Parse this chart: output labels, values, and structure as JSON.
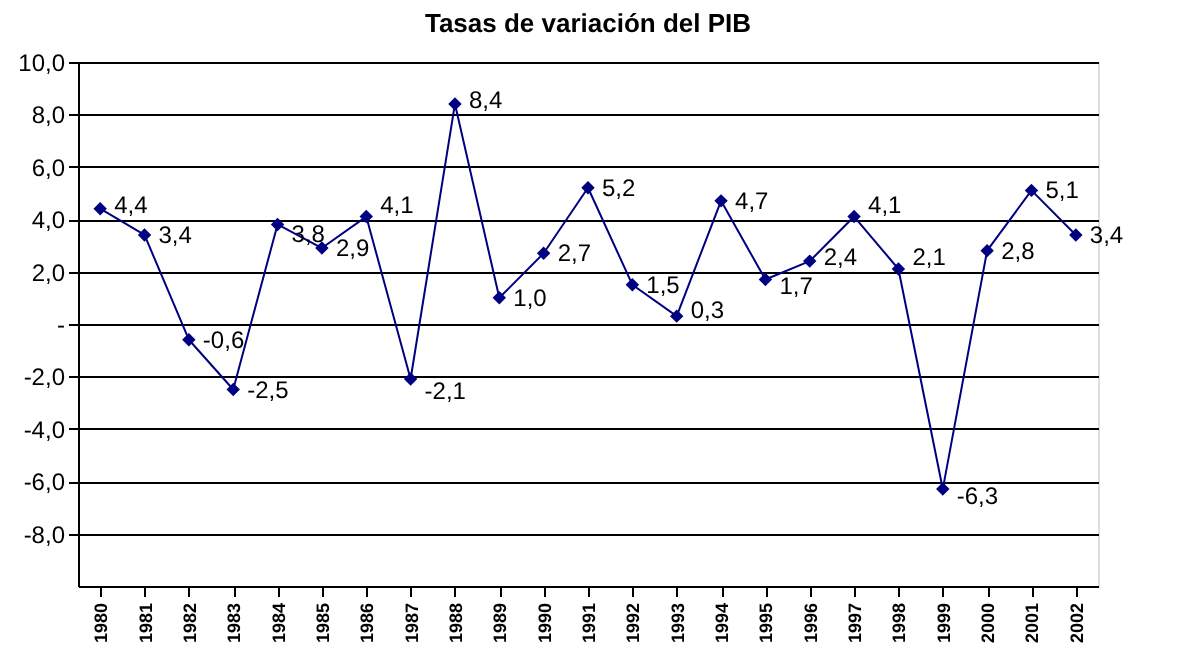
{
  "chart_data": {
    "type": "line",
    "title": "Tasas de variación del PIB",
    "categories": [
      "1980",
      "1981",
      "1982",
      "1983",
      "1984",
      "1985",
      "1986",
      "1987",
      "1988",
      "1989",
      "1990",
      "1991",
      "1992",
      "1993",
      "1994",
      "1995",
      "1996",
      "1997",
      "1998",
      "1999",
      "2000",
      "2001",
      "2002"
    ],
    "series": [
      {
        "color": "#000080",
        "values": [
          4.4,
          3.4,
          -0.6,
          -2.5,
          3.8,
          2.9,
          4.1,
          -2.1,
          8.4,
          1.0,
          2.7,
          5.2,
          1.5,
          0.3,
          4.7,
          1.7,
          2.4,
          4.1,
          2.1,
          -6.3,
          2.8,
          5.1,
          3.4
        ]
      }
    ],
    "value_labels": [
      "4,4",
      "3,4",
      "-0,6",
      "-2,5",
      "3,8",
      "2,9",
      "4,1",
      "-2,1",
      "8,4",
      "1,0",
      "2,7",
      "5,2",
      "1,5",
      "0,3",
      "4,7",
      "1,7",
      "2,4",
      "4,1",
      "2,1",
      "-6,3",
      "2,8",
      "5,1",
      "3,4"
    ],
    "ylim": [
      -10,
      10
    ],
    "yticks": [
      {
        "value": -8,
        "label": "-8,0"
      },
      {
        "value": -6,
        "label": "-6,0"
      },
      {
        "value": -4,
        "label": "-4,0"
      },
      {
        "value": -2,
        "label": "-2,0"
      },
      {
        "value": 0,
        "label": "-"
      },
      {
        "value": 2,
        "label": "2,0"
      },
      {
        "value": 4,
        "label": "4,0"
      },
      {
        "value": 6,
        "label": "6,0"
      },
      {
        "value": 8,
        "label": "8,0"
      },
      {
        "value": 10,
        "label": "10,0"
      }
    ],
    "grid": "y",
    "marker": "diamond",
    "line_style": "solid"
  }
}
